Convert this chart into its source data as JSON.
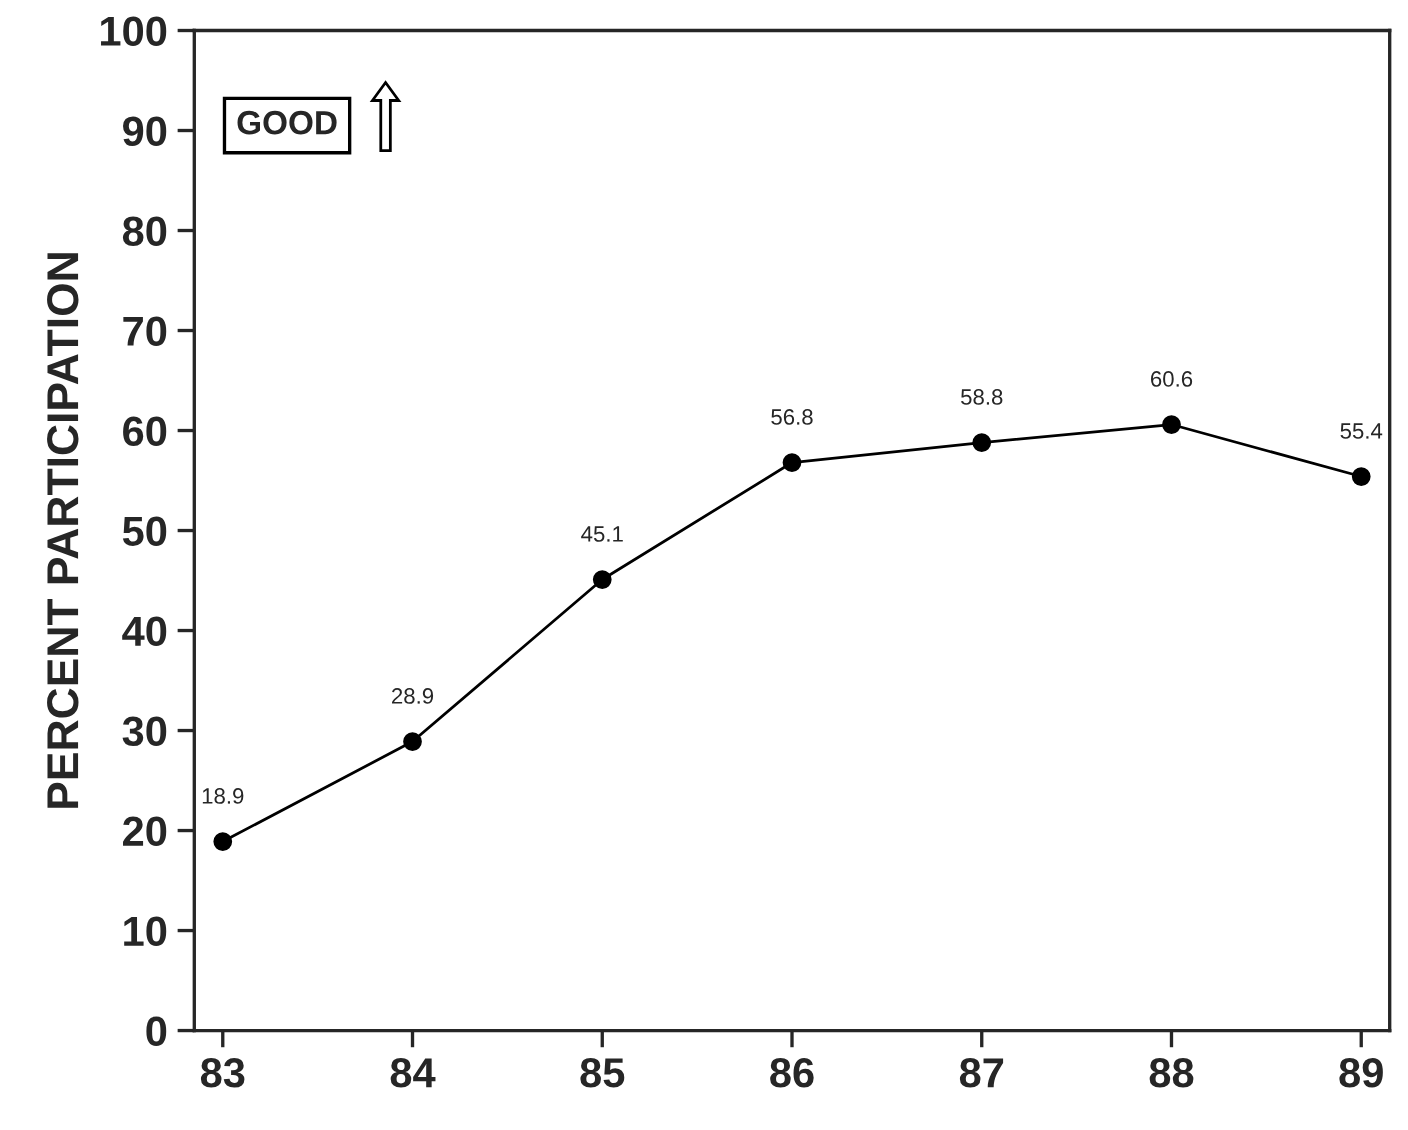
{
  "chart_data": {
    "type": "line",
    "ylabel": "PERCENT PARTICIPATION",
    "categories": [
      "83",
      "84",
      "85",
      "86",
      "87",
      "88",
      "89"
    ],
    "values": [
      18.9,
      28.9,
      45.1,
      56.8,
      58.8,
      60.6,
      55.4
    ],
    "color": "#000000",
    "marker": "circle",
    "line_style": "solid",
    "ylim": [
      0,
      100
    ],
    "yticks": [
      0,
      10,
      20,
      30,
      40,
      50,
      60,
      70,
      80,
      90,
      100
    ],
    "grid": false,
    "data_labels": true,
    "annotations": [
      "GOOD"
    ]
  }
}
